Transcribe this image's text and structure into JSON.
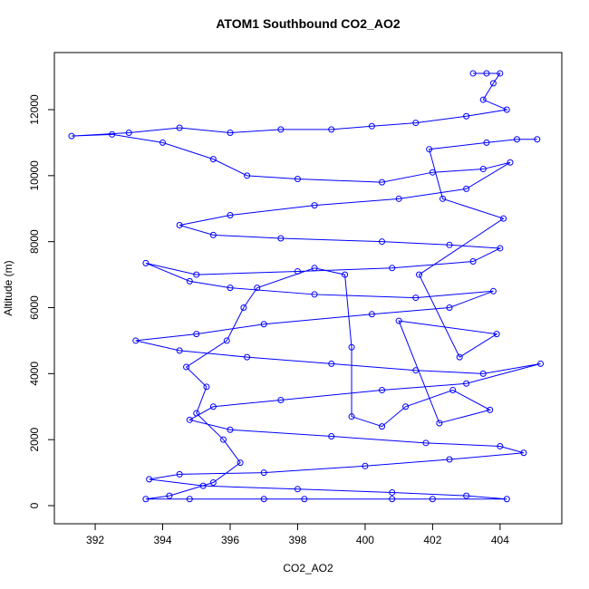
{
  "chart_data": {
    "type": "line",
    "markers": true,
    "title": "ATOM1 Southbound CO2_AO2",
    "x_label": "CO2_AO2",
    "y_label": "Altitude (m)",
    "color": "#0000ff",
    "xlim": [
      390.79,
      405.83
    ],
    "ylim": [
      -549,
      13730
    ],
    "xticks": [
      392,
      394,
      396,
      398,
      400,
      402,
      404
    ],
    "yticks": [
      0,
      2000,
      4000,
      6000,
      8000,
      10000,
      12000
    ],
    "grid": false,
    "x": [
      403.2,
      403.6,
      404.0,
      403.8,
      403.5,
      404.2,
      403.0,
      401.5,
      400.2,
      399.0,
      397.5,
      396.0,
      394.5,
      393.0,
      391.3,
      392.5,
      394.0,
      395.5,
      396.5,
      398.0,
      400.5,
      402.0,
      403.5,
      404.3,
      403.0,
      401.0,
      398.5,
      396.0,
      394.5,
      395.5,
      397.5,
      400.5,
      402.5,
      404.0,
      403.2,
      400.8,
      398.0,
      395.0,
      393.5,
      394.8,
      396.0,
      398.5,
      401.5,
      403.8,
      402.5,
      400.2,
      397.0,
      395.0,
      393.2,
      394.5,
      396.5,
      399.0,
      401.5,
      403.5,
      405.2,
      403.0,
      400.5,
      397.5,
      395.5,
      394.8,
      396.0,
      399.0,
      401.8,
      404.0,
      404.7,
      402.5,
      400.0,
      397.0,
      394.5,
      393.6,
      395.2,
      398.0,
      400.8,
      403.0,
      404.2,
      402.0,
      400.8,
      398.2,
      397.0,
      394.8,
      393.5,
      394.2,
      395.5,
      396.3,
      395.8,
      395.0,
      395.3,
      394.7,
      395.9,
      396.4,
      396.8,
      398.5,
      399.4,
      399.6,
      399.6,
      400.5,
      401.2,
      402.6,
      403.7,
      402.2,
      401.0,
      403.9,
      402.8,
      401.6,
      404.1,
      402.3,
      401.9,
      403.6,
      404.5,
      405.1
    ],
    "y": [
      13100,
      13100,
      13100,
      12800,
      12300,
      12000,
      11800,
      11600,
      11500,
      11400,
      11400,
      11300,
      11450,
      11300,
      11200,
      11250,
      11000,
      10500,
      10000,
      9900,
      9800,
      10100,
      10200,
      10400,
      9600,
      9300,
      9100,
      8800,
      8500,
      8200,
      8100,
      8000,
      7900,
      7800,
      7400,
      7200,
      7100,
      7000,
      7350,
      6800,
      6600,
      6400,
      6300,
      6500,
      6000,
      5800,
      5500,
      5200,
      5000,
      4700,
      4500,
      4300,
      4100,
      4000,
      4300,
      3700,
      3500,
      3200,
      3000,
      2600,
      2300,
      2100,
      1900,
      1800,
      1600,
      1400,
      1200,
      1000,
      950,
      800,
      600,
      500,
      400,
      300,
      200,
      200,
      200,
      200,
      200,
      200,
      200,
      300,
      700,
      1300,
      2000,
      2800,
      3600,
      4200,
      5000,
      6000,
      6600,
      7200,
      7000,
      4800,
      2700,
      2400,
      3000,
      3500,
      2900,
      2500,
      5600,
      5200,
      4500,
      7000,
      8700,
      9300,
      10800,
      11000,
      11100,
      11100
    ]
  }
}
